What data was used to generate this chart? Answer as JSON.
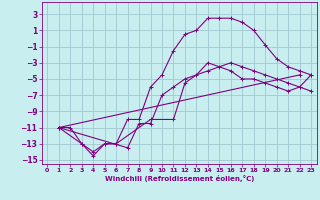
{
  "xlabel": "Windchill (Refroidissement éolien,°C)",
  "background_color": "#c8eef0",
  "grid_color": "#a0c8d0",
  "line_color": "#800080",
  "xlim": [
    -0.5,
    23.5
  ],
  "ylim": [
    -15.5,
    4.5
  ],
  "xticks": [
    0,
    1,
    2,
    3,
    4,
    5,
    6,
    7,
    8,
    9,
    10,
    11,
    12,
    13,
    14,
    15,
    16,
    17,
    18,
    19,
    20,
    21,
    22,
    23
  ],
  "yticks": [
    -15,
    -13,
    -11,
    -9,
    -7,
    -5,
    -3,
    -1,
    1,
    3
  ],
  "lines": [
    [
      [
        1,
        -11
      ],
      [
        2,
        -11
      ],
      [
        3,
        -13
      ],
      [
        4,
        -14
      ],
      [
        5,
        -13
      ],
      [
        6,
        -13
      ],
      [
        7,
        -10
      ],
      [
        8,
        -10
      ],
      [
        9,
        -6
      ],
      [
        10,
        -4.5
      ],
      [
        11,
        -1.5
      ],
      [
        12,
        0.5
      ],
      [
        13,
        1
      ],
      [
        14,
        2.5
      ],
      [
        15,
        2.5
      ],
      [
        16,
        2.5
      ],
      [
        17,
        2
      ],
      [
        18,
        1
      ],
      [
        19,
        -0.8
      ],
      [
        20,
        -2.5
      ],
      [
        21,
        -3.5
      ],
      [
        22,
        -4
      ],
      [
        23,
        -4.5
      ]
    ],
    [
      [
        1,
        -11
      ],
      [
        3,
        -13
      ],
      [
        4,
        -14.5
      ],
      [
        5,
        -13
      ],
      [
        6,
        -13
      ],
      [
        9,
        -10
      ],
      [
        11,
        -10
      ],
      [
        12,
        -5.5
      ],
      [
        13,
        -4.5
      ],
      [
        14,
        -3
      ],
      [
        15,
        -3.5
      ],
      [
        16,
        -4
      ],
      [
        17,
        -5
      ],
      [
        18,
        -5
      ],
      [
        19,
        -5.5
      ],
      [
        20,
        -6
      ],
      [
        21,
        -6.5
      ],
      [
        22,
        -6
      ],
      [
        23,
        -6.5
      ]
    ],
    [
      [
        1,
        -11
      ],
      [
        7,
        -13.5
      ],
      [
        8,
        -10.5
      ],
      [
        9,
        -10.5
      ],
      [
        10,
        -7
      ],
      [
        11,
        -6
      ],
      [
        12,
        -5
      ],
      [
        14,
        -4
      ],
      [
        16,
        -3
      ],
      [
        17,
        -3.5
      ],
      [
        18,
        -4
      ],
      [
        19,
        -4.5
      ],
      [
        20,
        -5
      ],
      [
        21,
        -5.5
      ],
      [
        22,
        -6
      ],
      [
        23,
        -4.5
      ]
    ],
    [
      [
        1,
        -11
      ],
      [
        22,
        -4.5
      ]
    ]
  ]
}
